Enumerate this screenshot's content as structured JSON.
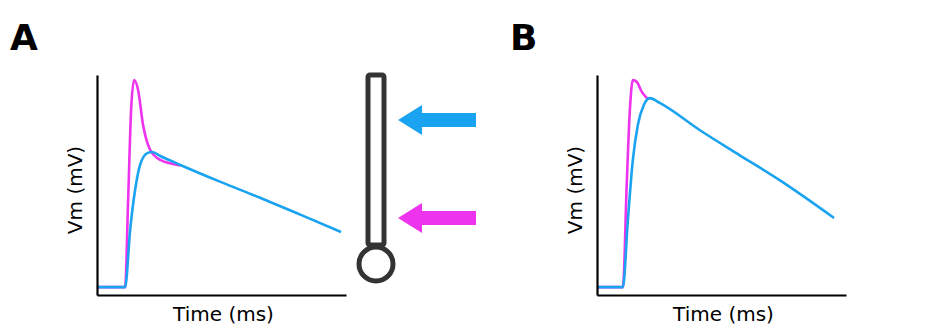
{
  "chart_data": [
    {
      "type": "line",
      "title": "A",
      "x_label": "Time (ms)",
      "y_label": "Vm (mV)",
      "xlim": [
        0,
        100
      ],
      "ylim": [
        0,
        100
      ],
      "xticks": [],
      "yticks": [],
      "tick_labels": false,
      "series": [
        {
          "color": "#ee33ee",
          "x": [
            0,
            11.3,
            12.5,
            13.7,
            14.9,
            16.5,
            18.5,
            21.4,
            25.4,
            33.5
          ],
          "values": [
            3.6,
            3.6,
            43.2,
            84.1,
            97.7,
            93.2,
            77.3,
            65.9,
            61.4,
            58.9
          ]
        },
        {
          "color": "#1aa3f0",
          "x": [
            0,
            11.3,
            13.3,
            15.3,
            17.3,
            20.2,
            22.2,
            25.4,
            33.5,
            49.6,
            65.7,
            81.9,
            98.0
          ],
          "values": [
            3.6,
            3.6,
            29.5,
            47.7,
            59.1,
            64.5,
            65.0,
            63.2,
            59.1,
            51.4,
            44.1,
            36.4,
            28.6
          ]
        }
      ]
    },
    {
      "type": "line",
      "title": "B",
      "x_label": "Time (ms)",
      "y_label": "Vm (mV)",
      "xlim": [
        0,
        100
      ],
      "ylim": [
        0,
        100
      ],
      "xticks": [],
      "yticks": [],
      "tick_labels": false,
      "series": [
        {
          "color": "#ee33ee",
          "x": [
            0,
            10.4,
            12.0,
            13.2,
            14.4,
            16.0,
            18.0,
            20.4
          ],
          "values": [
            3.6,
            3.6,
            52.3,
            84.1,
            97.7,
            96.8,
            92.3,
            89.1
          ]
        },
        {
          "color": "#1aa3f0",
          "x": [
            0,
            10.4,
            12.4,
            14.4,
            16.4,
            18.8,
            21.2,
            25.2,
            41.2,
            57.2,
            73.2,
            95.2
          ],
          "values": [
            3.6,
            3.6,
            34.1,
            61.4,
            77.3,
            86.4,
            89.5,
            87.3,
            75.0,
            63.6,
            52.3,
            35.0
          ]
        }
      ]
    }
  ]
}
